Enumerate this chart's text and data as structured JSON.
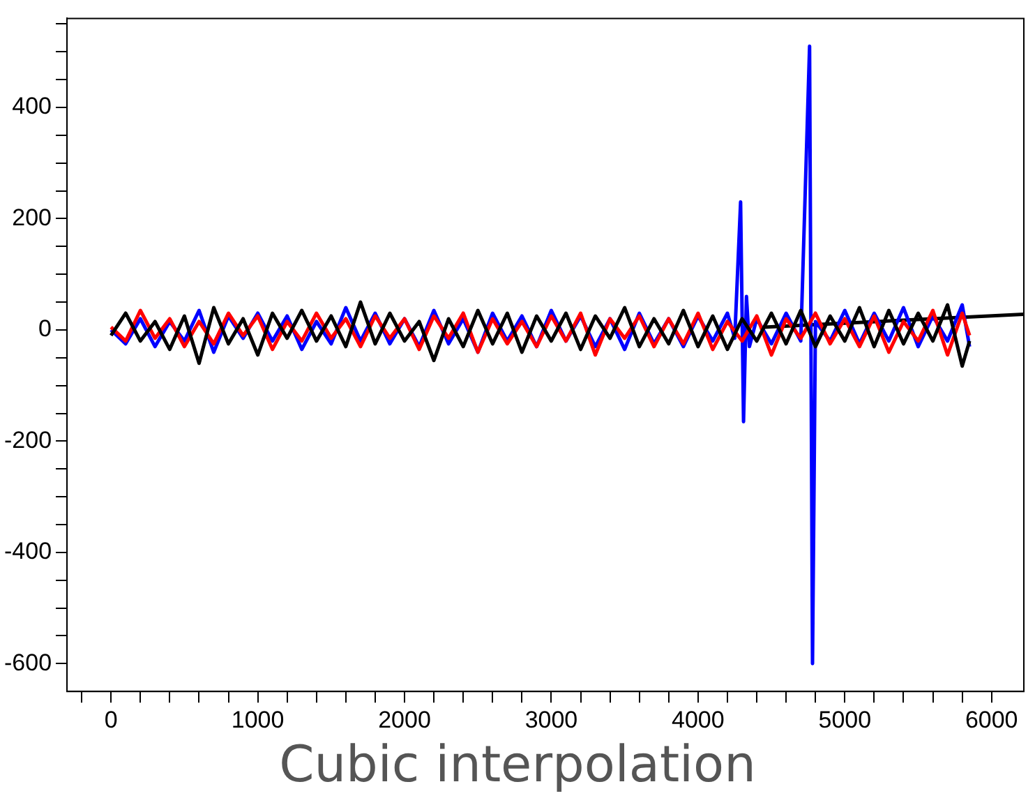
{
  "chart_data": {
    "type": "line",
    "annotations": [
      "Cubic interpolation"
    ],
    "x": [
      0,
      100,
      200,
      300,
      400,
      500,
      600,
      700,
      800,
      900,
      1000,
      1100,
      1200,
      1300,
      1400,
      1500,
      1600,
      1700,
      1800,
      1900,
      2000,
      2100,
      2200,
      2300,
      2400,
      2500,
      2600,
      2700,
      2800,
      2900,
      3000,
      3100,
      3200,
      3300,
      3400,
      3500,
      3600,
      3700,
      3800,
      3900,
      4000,
      4100,
      4200,
      4300,
      4400,
      4500,
      4600,
      4700,
      4800,
      4900,
      5000,
      5100,
      5200,
      5300,
      5400,
      5500,
      5600,
      5700,
      5800,
      5850
    ],
    "series": [
      {
        "color": "#000000",
        "values": [
          -10,
          30,
          -20,
          15,
          -35,
          25,
          -60,
          40,
          -25,
          20,
          -45,
          30,
          -15,
          35,
          -20,
          25,
          -30,
          50,
          -25,
          30,
          -20,
          15,
          -55,
          20,
          -30,
          35,
          -25,
          30,
          -40,
          25,
          -20,
          30,
          -35,
          25,
          -15,
          40,
          -30,
          20,
          -25,
          35,
          -30,
          25,
          -35,
          20,
          -20,
          30,
          -25,
          35,
          -30,
          25,
          -20,
          40,
          -30,
          35,
          -25,
          30,
          -20,
          45,
          -65,
          -20
        ]
      },
      {
        "color": "#ff0000",
        "values": [
          5,
          -20,
          35,
          -15,
          20,
          -30,
          15,
          -25,
          30,
          -10,
          25,
          -35,
          15,
          -20,
          30,
          -15,
          20,
          -30,
          25,
          -15,
          20,
          -35,
          25,
          -15,
          30,
          -40,
          20,
          -25,
          15,
          -30,
          25,
          -20,
          30,
          -45,
          20,
          -15,
          25,
          -30,
          20,
          -25,
          30,
          -35,
          15,
          -20,
          25,
          -45,
          20,
          -15,
          30,
          -25,
          20,
          -30,
          25,
          -40,
          15,
          -20,
          35,
          -45,
          30,
          -10
        ]
      },
      {
        "color": "#0000ff",
        "x": [
          0,
          100,
          200,
          300,
          400,
          500,
          600,
          700,
          800,
          900,
          1000,
          1100,
          1200,
          1300,
          1400,
          1500,
          1600,
          1700,
          1800,
          1900,
          2000,
          2100,
          2200,
          2300,
          2400,
          2500,
          2600,
          2700,
          2800,
          2900,
          3000,
          3100,
          3200,
          3300,
          3400,
          3500,
          3600,
          3700,
          3800,
          3900,
          4000,
          4100,
          4200,
          4250,
          4290,
          4310,
          4330,
          4350,
          4400,
          4500,
          4600,
          4700,
          4760,
          4780,
          4800,
          4900,
          5000,
          5100,
          5200,
          5300,
          5400,
          5500,
          5600,
          5700,
          5800,
          5850
        ],
        "values": [
          0,
          -25,
          20,
          -30,
          15,
          -20,
          35,
          -40,
          25,
          -15,
          30,
          -20,
          25,
          -35,
          15,
          -25,
          40,
          -20,
          30,
          -25,
          20,
          -30,
          35,
          -25,
          20,
          -40,
          30,
          -20,
          25,
          -30,
          35,
          -20,
          25,
          -30,
          20,
          -35,
          30,
          -25,
          20,
          -30,
          25,
          -20,
          30,
          -15,
          230,
          -165,
          60,
          -30,
          20,
          -25,
          30,
          -20,
          510,
          -600,
          15,
          -20,
          35,
          -25,
          30,
          -20,
          40,
          -30,
          25,
          -20,
          45,
          -30
        ]
      },
      {
        "color": "#000000",
        "x": [
          4450,
          6220
        ],
        "values": [
          5,
          28
        ]
      }
    ],
    "xlim": [
      -300,
      6220
    ],
    "xticks": [
      {
        "value": -200,
        "label": null
      },
      0,
      {
        "value": 200,
        "label": null
      },
      {
        "value": 400,
        "label": null
      },
      {
        "value": 600,
        "label": null
      },
      {
        "value": 800,
        "label": null
      },
      1000,
      {
        "value": 1200,
        "label": null
      },
      {
        "value": 1400,
        "label": null
      },
      {
        "value": 1600,
        "label": null
      },
      {
        "value": 1800,
        "label": null
      },
      2000,
      {
        "value": 2200,
        "label": null
      },
      {
        "value": 2400,
        "label": null
      },
      {
        "value": 2600,
        "label": null
      },
      {
        "value": 2800,
        "label": null
      },
      3000,
      {
        "value": 3200,
        "label": null
      },
      {
        "value": 3400,
        "label": null
      },
      {
        "value": 3600,
        "label": null
      },
      {
        "value": 3800,
        "label": null
      },
      4000,
      {
        "value": 4200,
        "label": null
      },
      {
        "value": 4400,
        "label": null
      },
      {
        "value": 4600,
        "label": null
      },
      {
        "value": 4800,
        "label": null
      },
      5000,
      {
        "value": 5200,
        "label": null
      },
      {
        "value": 5400,
        "label": null
      },
      {
        "value": 5600,
        "label": null
      },
      {
        "value": 5800,
        "label": null
      },
      6000
    ],
    "ylim": [
      -650,
      560
    ],
    "yticks": [
      -600,
      {
        "value": -550,
        "label": null
      },
      {
        "value": -500,
        "label": null
      },
      {
        "value": -450,
        "label": null
      },
      -400,
      {
        "value": -350,
        "label": null
      },
      {
        "value": -300,
        "label": null
      },
      {
        "value": -250,
        "label": null
      },
      -200,
      {
        "value": -150,
        "label": null
      },
      {
        "value": -100,
        "label": null
      },
      {
        "value": -50,
        "label": null
      },
      0,
      {
        "value": 50,
        "label": null
      },
      {
        "value": 100,
        "label": null
      },
      {
        "value": 150,
        "label": null
      },
      200,
      {
        "value": 250,
        "label": null
      },
      {
        "value": 300,
        "label": null
      },
      {
        "value": 350,
        "label": null
      },
      400,
      {
        "value": 450,
        "label": null
      },
      {
        "value": 500,
        "label": null
      },
      {
        "value": 550,
        "label": null
      }
    ],
    "grid": false,
    "legend": false,
    "marker": "none",
    "line_style": "solid"
  }
}
